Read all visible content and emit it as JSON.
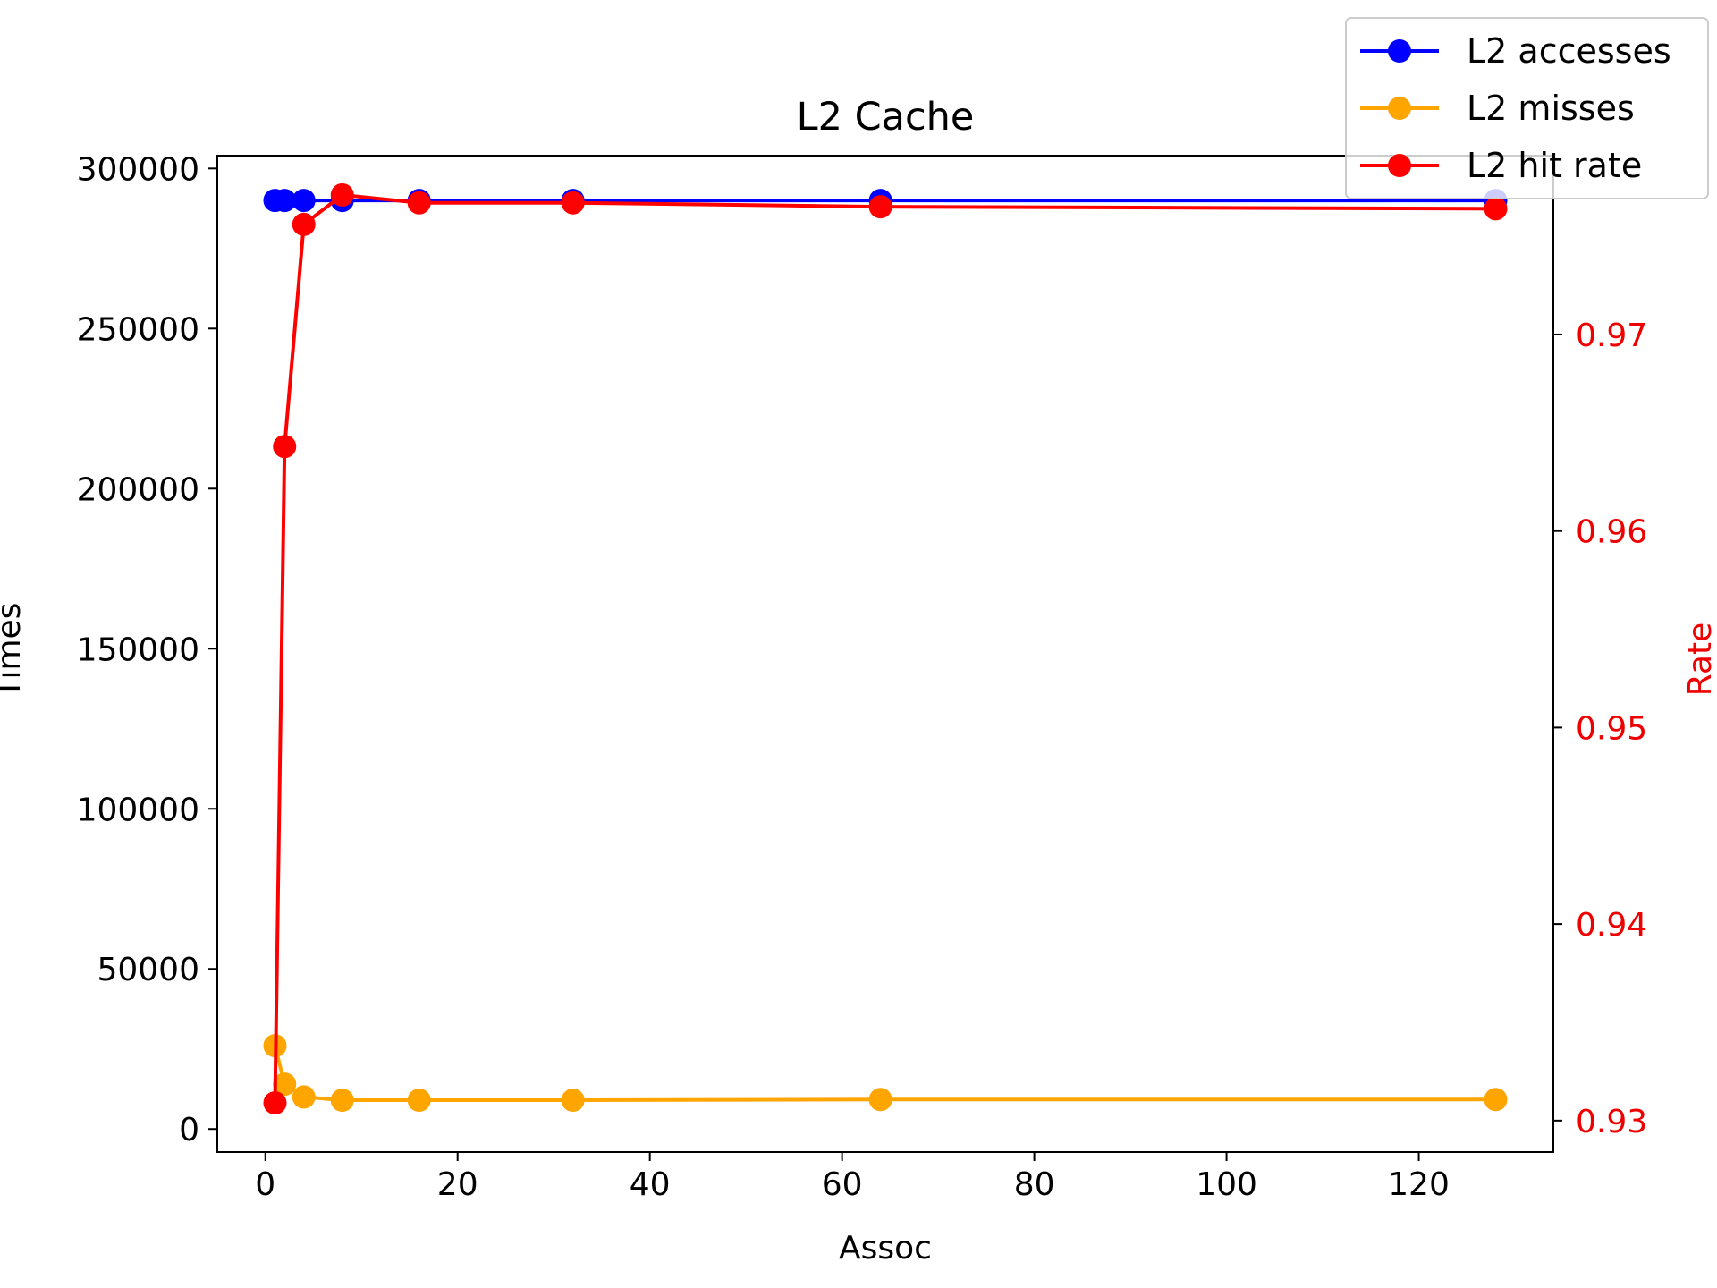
{
  "chart_data": {
    "type": "line",
    "title": "L2 Cache",
    "xlabel": "Assoc",
    "ylabel": "Times",
    "y2label": "Rate",
    "xlim": [
      -5,
      134
    ],
    "ylim": [
      -7200,
      304000
    ],
    "y2lim": [
      0.9284,
      0.9791
    ],
    "xticks": [
      0,
      20,
      40,
      60,
      80,
      100,
      120
    ],
    "yticks": [
      0,
      50000,
      100000,
      150000,
      200000,
      250000,
      300000
    ],
    "y2ticks": [
      0.93,
      0.94,
      0.95,
      0.96,
      0.97
    ],
    "x": [
      1,
      2,
      4,
      8,
      16,
      32,
      64,
      128
    ],
    "series": [
      {
        "name": "L2 accesses",
        "axis": "left",
        "color": "#0000ff",
        "values": [
          290000,
          290000,
          290000,
          290000,
          290000,
          290000,
          290000,
          290000
        ]
      },
      {
        "name": "L2 misses",
        "axis": "left",
        "color": "#ffa500",
        "values": [
          26000,
          14000,
          10000,
          9000,
          9000,
          9000,
          9200,
          9200
        ]
      },
      {
        "name": "L2 hit rate",
        "axis": "right",
        "color": "#ff0000",
        "values": [
          0.9309,
          0.9643,
          0.9756,
          0.9771,
          0.9767,
          0.9767,
          0.9765,
          0.9764
        ]
      }
    ],
    "legend": "upper-right",
    "grid": false
  }
}
